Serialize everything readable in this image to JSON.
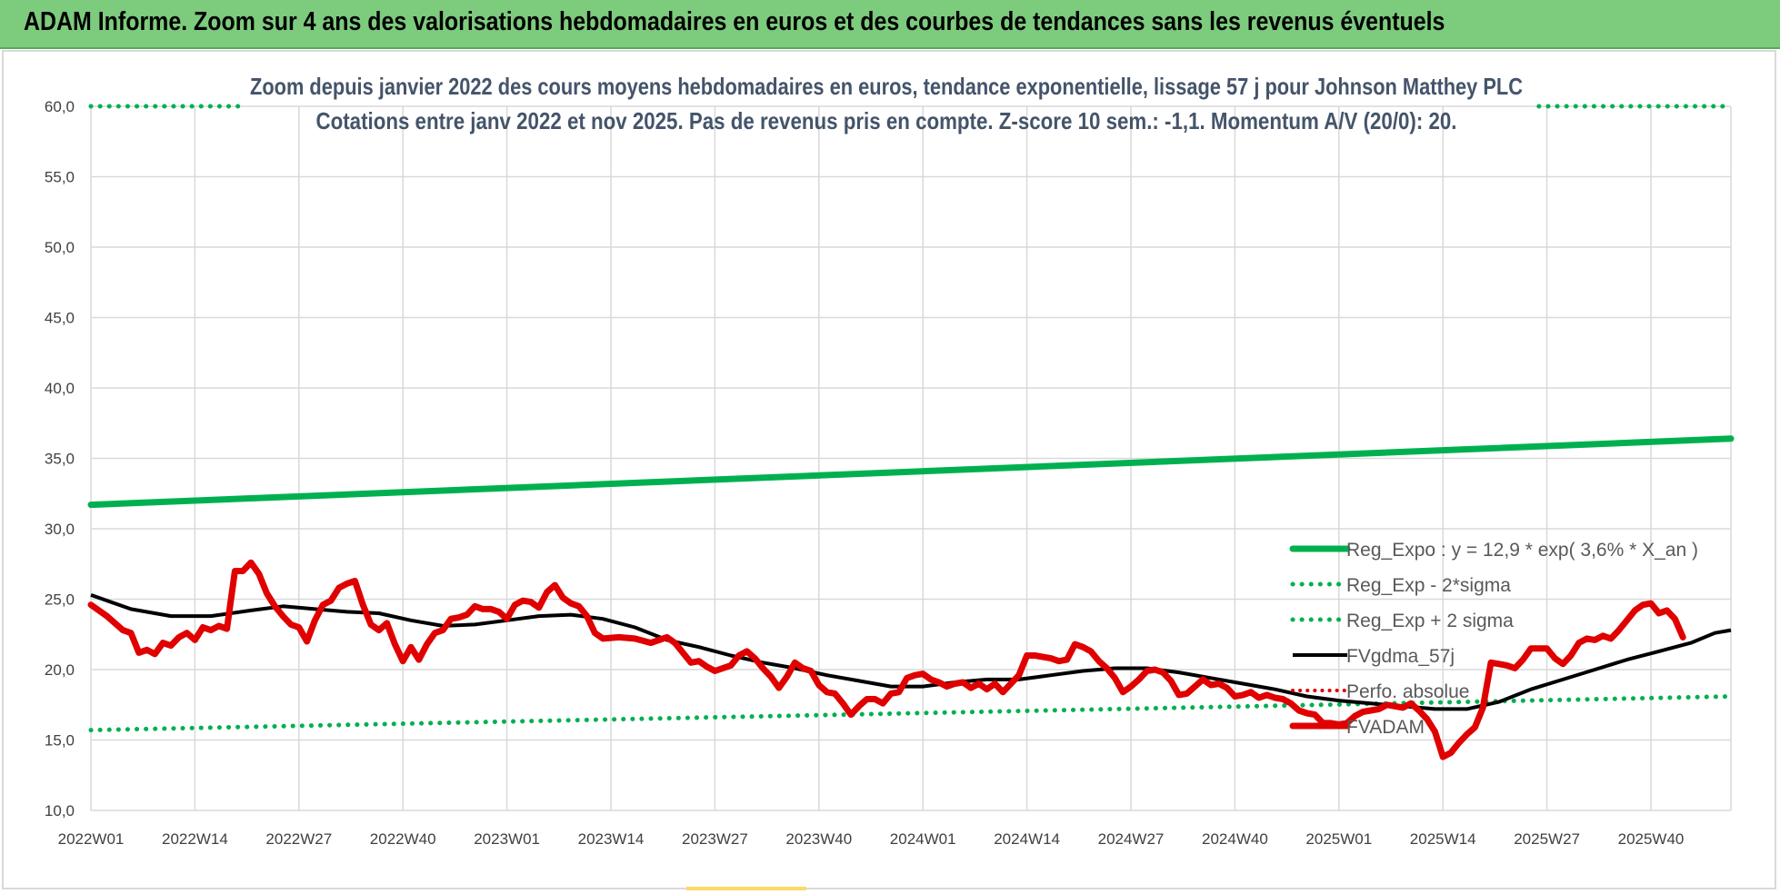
{
  "banner": {
    "title": "ADAM Informe. Zoom sur 4 ans des valorisations hebdomadaires en euros et des courbes de tendances sans les revenus éventuels"
  },
  "chart_data": {
    "type": "line",
    "title": "Zoom depuis janvier 2022 des cours moyens hebdomadaires en euros, tendance exponentielle, lissage 57 j pour Johnson Matthey PLC",
    "subtitle": "Cotations entre janv 2022 et nov 2025. Pas de revenus pris en compte. Z-score 10 sem.: -1,1. Momentum A/V (20/0): 20.",
    "ylim": [
      10,
      60
    ],
    "yticks": [
      "60,0",
      "55,0",
      "50,0",
      "45,0",
      "40,0",
      "35,0",
      "30,0",
      "25,0",
      "20,0",
      "15,0",
      "10,0"
    ],
    "xticks": [
      "2022W01",
      "2022W14",
      "2022W27",
      "2022W40",
      "2023W01",
      "2023W14",
      "2023W27",
      "2023W40",
      "2024W01",
      "2024W14",
      "2024W27",
      "2024W40",
      "2025W01",
      "2025W14",
      "2025W27",
      "2025W40"
    ],
    "grid": true,
    "legend_position": "right",
    "colors": {
      "reg_expo": "#00b050",
      "bands": "#00b050",
      "fvgdma": "#000000",
      "perfo": "#e00000",
      "fvadam": "#e00000",
      "grid": "#d9d9d9",
      "banner": "#7dcb7d"
    },
    "series": [
      {
        "name": "Reg_Expo : y = 12,9 * exp( 3,6% *  X_an )",
        "style": "solid",
        "points": [
          [
            0,
            31.7
          ],
          [
            205,
            36.4
          ]
        ]
      },
      {
        "name": "Reg_Exp - 2*sigma",
        "style": "dotted",
        "points": [
          [
            0,
            15.7
          ],
          [
            205,
            18.1
          ]
        ]
      },
      {
        "name": "Reg_Exp + 2 sigma",
        "style": "dotted",
        "points": [
          [
            0,
            60.0
          ],
          [
            19,
            60.0
          ]
        ],
        "points2": [
          [
            181,
            60.0
          ],
          [
            205,
            60.0
          ]
        ]
      },
      {
        "name": "FVgdma_57j",
        "style": "solid",
        "points": [
          [
            0,
            25.3
          ],
          [
            5,
            24.3
          ],
          [
            10,
            23.8
          ],
          [
            15,
            23.8
          ],
          [
            20,
            24.2
          ],
          [
            24,
            24.5
          ],
          [
            28,
            24.3
          ],
          [
            32,
            24.1
          ],
          [
            36,
            24.0
          ],
          [
            40,
            23.5
          ],
          [
            44,
            23.1
          ],
          [
            48,
            23.2
          ],
          [
            52,
            23.5
          ],
          [
            56,
            23.8
          ],
          [
            60,
            23.9
          ],
          [
            64,
            23.6
          ],
          [
            68,
            23.0
          ],
          [
            72,
            22.1
          ],
          [
            76,
            21.6
          ],
          [
            80,
            21.0
          ],
          [
            84,
            20.5
          ],
          [
            88,
            20.1
          ],
          [
            92,
            19.6
          ],
          [
            96,
            19.2
          ],
          [
            100,
            18.8
          ],
          [
            104,
            18.8
          ],
          [
            108,
            19.1
          ],
          [
            112,
            19.3
          ],
          [
            116,
            19.3
          ],
          [
            120,
            19.6
          ],
          [
            124,
            19.9
          ],
          [
            128,
            20.1
          ],
          [
            132,
            20.1
          ],
          [
            136,
            19.8
          ],
          [
            140,
            19.4
          ],
          [
            144,
            19.0
          ],
          [
            148,
            18.6
          ],
          [
            152,
            18.1
          ],
          [
            156,
            17.8
          ],
          [
            160,
            17.6
          ],
          [
            164,
            17.4
          ],
          [
            168,
            17.2
          ],
          [
            172,
            17.2
          ],
          [
            176,
            17.7
          ],
          [
            180,
            18.6
          ],
          [
            184,
            19.3
          ],
          [
            188,
            20.0
          ],
          [
            192,
            20.7
          ],
          [
            196,
            21.3
          ],
          [
            200,
            21.9
          ],
          [
            203,
            22.6
          ],
          [
            205,
            22.8
          ]
        ]
      },
      {
        "name": "Perfo. absolue",
        "style": "dotted",
        "points": []
      },
      {
        "name": "FVADAM",
        "style": "solid",
        "points": [
          [
            0,
            24.6
          ],
          [
            2,
            23.8
          ],
          [
            4,
            22.8
          ],
          [
            5,
            22.6
          ],
          [
            6,
            21.2
          ],
          [
            7,
            21.4
          ],
          [
            8,
            21.1
          ],
          [
            9,
            21.9
          ],
          [
            10,
            21.7
          ],
          [
            11,
            22.3
          ],
          [
            12,
            22.6
          ],
          [
            13,
            22.1
          ],
          [
            14,
            23.0
          ],
          [
            15,
            22.8
          ],
          [
            16,
            23.1
          ],
          [
            17,
            22.9
          ],
          [
            18,
            27.0
          ],
          [
            19,
            27.0
          ],
          [
            20,
            27.6
          ],
          [
            21,
            26.8
          ],
          [
            22,
            25.4
          ],
          [
            23,
            24.5
          ],
          [
            24,
            23.8
          ],
          [
            25,
            23.2
          ],
          [
            26,
            23.0
          ],
          [
            27,
            22.0
          ],
          [
            28,
            23.5
          ],
          [
            29,
            24.6
          ],
          [
            30,
            24.9
          ],
          [
            31,
            25.8
          ],
          [
            32,
            26.1
          ],
          [
            33,
            26.3
          ],
          [
            34,
            24.6
          ],
          [
            35,
            23.2
          ],
          [
            36,
            22.8
          ],
          [
            37,
            23.3
          ],
          [
            38,
            21.8
          ],
          [
            39,
            20.6
          ],
          [
            40,
            21.6
          ],
          [
            41,
            20.7
          ],
          [
            42,
            21.8
          ],
          [
            43,
            22.6
          ],
          [
            44,
            22.8
          ],
          [
            45,
            23.6
          ],
          [
            46,
            23.7
          ],
          [
            47,
            23.9
          ],
          [
            48,
            24.5
          ],
          [
            49,
            24.3
          ],
          [
            50,
            24.3
          ],
          [
            51,
            24.1
          ],
          [
            52,
            23.6
          ],
          [
            53,
            24.6
          ],
          [
            54,
            24.9
          ],
          [
            55,
            24.8
          ],
          [
            56,
            24.4
          ],
          [
            57,
            25.5
          ],
          [
            58,
            26.0
          ],
          [
            59,
            25.1
          ],
          [
            60,
            24.7
          ],
          [
            61,
            24.5
          ],
          [
            62,
            23.8
          ],
          [
            63,
            22.6
          ],
          [
            64,
            22.2
          ],
          [
            66,
            22.3
          ],
          [
            68,
            22.2
          ],
          [
            70,
            21.9
          ],
          [
            72,
            22.3
          ],
          [
            73,
            21.9
          ],
          [
            74,
            21.2
          ],
          [
            75,
            20.5
          ],
          [
            76,
            20.6
          ],
          [
            77,
            20.2
          ],
          [
            78,
            19.9
          ],
          [
            80,
            20.3
          ],
          [
            81,
            21.0
          ],
          [
            82,
            21.3
          ],
          [
            83,
            20.8
          ],
          [
            84,
            20.1
          ],
          [
            85,
            19.5
          ],
          [
            86,
            18.7
          ],
          [
            87,
            19.5
          ],
          [
            88,
            20.5
          ],
          [
            89,
            20.1
          ],
          [
            90,
            19.9
          ],
          [
            91,
            18.9
          ],
          [
            92,
            18.4
          ],
          [
            93,
            18.3
          ],
          [
            94,
            17.6
          ],
          [
            95,
            16.8
          ],
          [
            96,
            17.4
          ],
          [
            97,
            17.9
          ],
          [
            98,
            17.9
          ],
          [
            99,
            17.6
          ],
          [
            100,
            18.3
          ],
          [
            101,
            18.4
          ],
          [
            102,
            19.4
          ],
          [
            103,
            19.6
          ],
          [
            104,
            19.7
          ],
          [
            105,
            19.3
          ],
          [
            106,
            19.1
          ],
          [
            107,
            18.8
          ],
          [
            108,
            19.0
          ],
          [
            109,
            19.1
          ],
          [
            110,
            18.7
          ],
          [
            111,
            19.0
          ],
          [
            112,
            18.6
          ],
          [
            113,
            19.0
          ],
          [
            114,
            18.4
          ],
          [
            115,
            19.0
          ],
          [
            116,
            19.6
          ],
          [
            117,
            21.0
          ],
          [
            118,
            21.0
          ],
          [
            119,
            20.9
          ],
          [
            120,
            20.8
          ],
          [
            121,
            20.6
          ],
          [
            122,
            20.7
          ],
          [
            123,
            21.8
          ],
          [
            124,
            21.6
          ],
          [
            125,
            21.3
          ],
          [
            126,
            20.6
          ],
          [
            127,
            20.1
          ],
          [
            128,
            19.4
          ],
          [
            129,
            18.4
          ],
          [
            130,
            18.8
          ],
          [
            131,
            19.3
          ],
          [
            132,
            19.9
          ],
          [
            133,
            20.0
          ],
          [
            134,
            19.8
          ],
          [
            135,
            19.2
          ],
          [
            136,
            18.2
          ],
          [
            137,
            18.3
          ],
          [
            138,
            18.8
          ],
          [
            139,
            19.3
          ],
          [
            140,
            18.9
          ],
          [
            141,
            19.0
          ],
          [
            142,
            18.7
          ],
          [
            143,
            18.1
          ],
          [
            144,
            18.2
          ],
          [
            145,
            18.4
          ],
          [
            146,
            18.0
          ],
          [
            147,
            18.2
          ],
          [
            148,
            18.0
          ],
          [
            149,
            17.9
          ],
          [
            150,
            17.6
          ],
          [
            151,
            17.1
          ],
          [
            152,
            16.9
          ],
          [
            153,
            16.8
          ],
          [
            154,
            16.2
          ],
          [
            155,
            16.2
          ],
          [
            156,
            16.1
          ],
          [
            157,
            16.2
          ],
          [
            158,
            16.7
          ],
          [
            159,
            17.0
          ],
          [
            160,
            17.1
          ],
          [
            161,
            17.2
          ],
          [
            162,
            17.5
          ],
          [
            163,
            17.4
          ],
          [
            164,
            17.3
          ],
          [
            165,
            17.6
          ],
          [
            166,
            17.1
          ],
          [
            167,
            16.5
          ],
          [
            168,
            15.6
          ],
          [
            169,
            13.8
          ],
          [
            170,
            14.1
          ],
          [
            171,
            14.8
          ],
          [
            172,
            15.4
          ],
          [
            173,
            15.9
          ],
          [
            174,
            17.3
          ],
          [
            175,
            20.5
          ],
          [
            176,
            20.4
          ],
          [
            177,
            20.3
          ],
          [
            178,
            20.1
          ],
          [
            179,
            20.7
          ],
          [
            180,
            21.5
          ],
          [
            181,
            21.5
          ],
          [
            182,
            21.5
          ],
          [
            183,
            20.8
          ],
          [
            184,
            20.4
          ],
          [
            185,
            21.0
          ],
          [
            186,
            21.9
          ],
          [
            187,
            22.2
          ],
          [
            188,
            22.1
          ],
          [
            189,
            22.4
          ],
          [
            190,
            22.2
          ],
          [
            191,
            22.8
          ],
          [
            192,
            23.5
          ],
          [
            193,
            24.2
          ],
          [
            194,
            24.6
          ],
          [
            195,
            24.7
          ],
          [
            196,
            24.0
          ],
          [
            197,
            24.2
          ],
          [
            198,
            23.6
          ],
          [
            199,
            22.3
          ]
        ]
      }
    ]
  }
}
